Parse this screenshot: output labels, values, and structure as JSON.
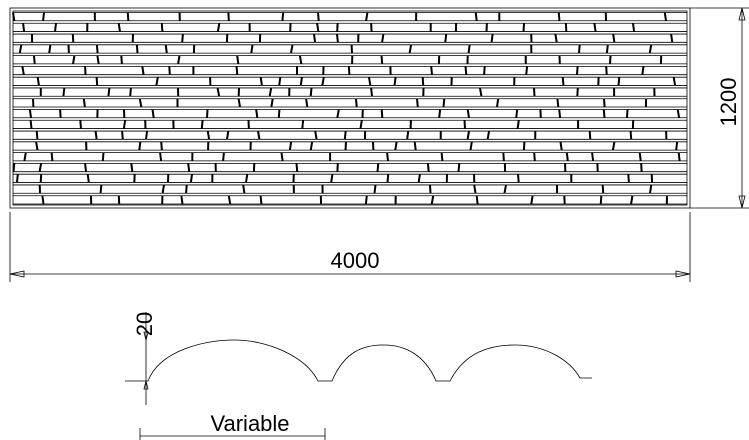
{
  "labels": {
    "height": "1200",
    "width": "4000",
    "depth": "20",
    "spacing": "Variable"
  }
}
